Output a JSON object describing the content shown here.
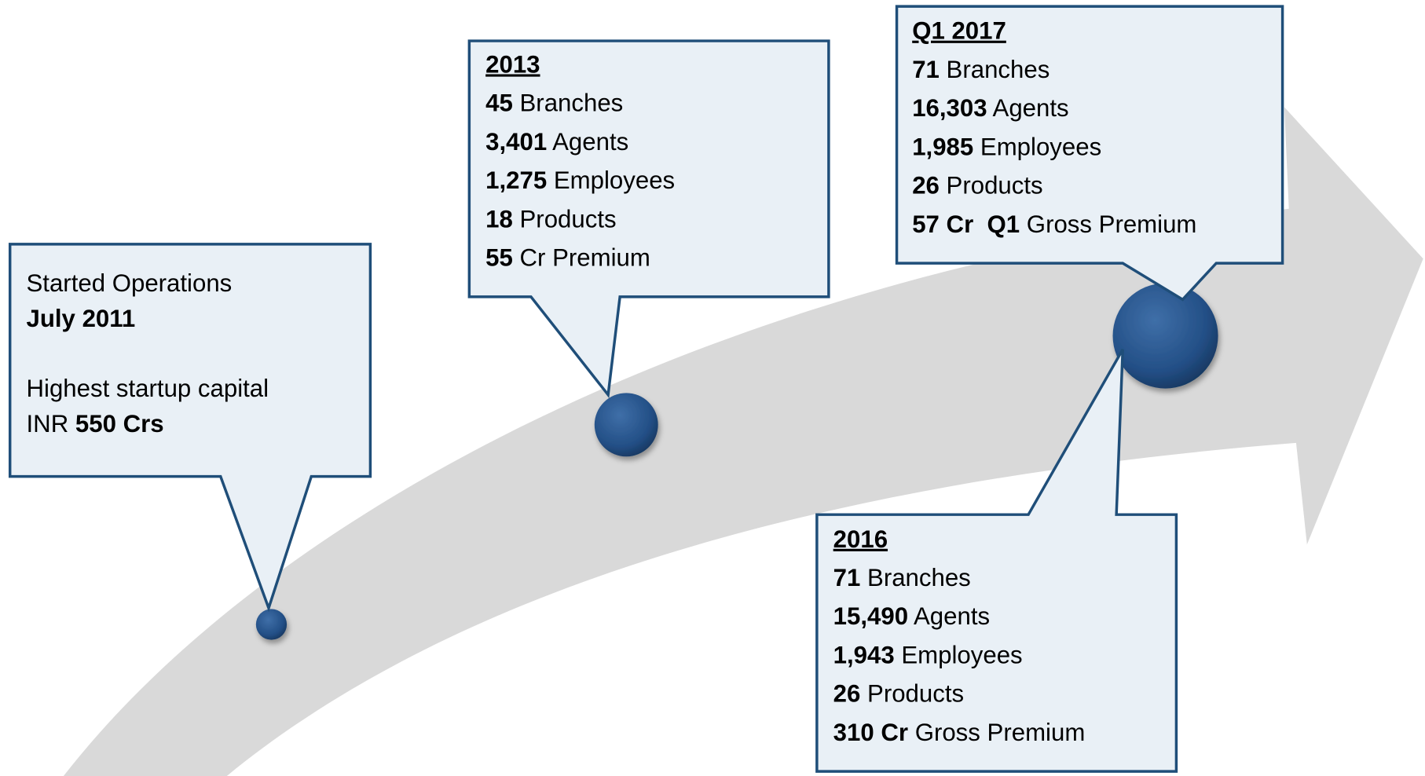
{
  "callouts": [
    {
      "paragraphs": [
        [
          [
            {
              "text": "Started Operations"
            }
          ],
          [
            {
              "text": "July 2011",
              "bold": true
            }
          ]
        ],
        [
          [
            {
              "text": "Highest startup capital"
            }
          ],
          [
            {
              "text": "INR "
            },
            {
              "text": "550 Crs",
              "bold": true
            }
          ]
        ]
      ]
    },
    {
      "title": "2013",
      "paragraphs": [
        [
          [
            {
              "text": "45",
              "bold": true
            },
            {
              "text": " Branches"
            }
          ],
          [
            {
              "text": "3,401",
              "bold": true
            },
            {
              "text": " Agents"
            }
          ],
          [
            {
              "text": "1,275",
              "bold": true
            },
            {
              "text": " Employees"
            }
          ],
          [
            {
              "text": "18",
              "bold": true
            },
            {
              "text": " Products"
            }
          ],
          [
            {
              "text": "55",
              "bold": true
            },
            {
              "text": " Cr Premium"
            }
          ]
        ]
      ]
    },
    {
      "title": "Q1 2017",
      "paragraphs": [
        [
          [
            {
              "text": "71",
              "bold": true
            },
            {
              "text": " Branches"
            }
          ],
          [
            {
              "text": "16,303",
              "bold": true
            },
            {
              "text": " Agents"
            }
          ],
          [
            {
              "text": "1,985",
              "bold": true
            },
            {
              "text": " Employees"
            }
          ],
          [
            {
              "text": "26",
              "bold": true
            },
            {
              "text": " Products"
            }
          ],
          [
            {
              "text": "57 Cr  Q1",
              "bold": true
            },
            {
              "text": " Gross Premium"
            }
          ]
        ]
      ]
    },
    {
      "title": "2016",
      "paragraphs": [
        [
          [
            {
              "text": "71",
              "bold": true
            },
            {
              "text": " Branches"
            }
          ],
          [
            {
              "text": "15,490",
              "bold": true
            },
            {
              "text": " Agents"
            }
          ],
          [
            {
              "text": "1,943",
              "bold": true
            },
            {
              "text": " Employees"
            }
          ],
          [
            {
              "text": "26",
              "bold": true
            },
            {
              "text": " Products"
            }
          ],
          [
            {
              "text": "310 Cr",
              "bold": true
            },
            {
              "text": " Gross Premium"
            }
          ]
        ]
      ]
    }
  ]
}
